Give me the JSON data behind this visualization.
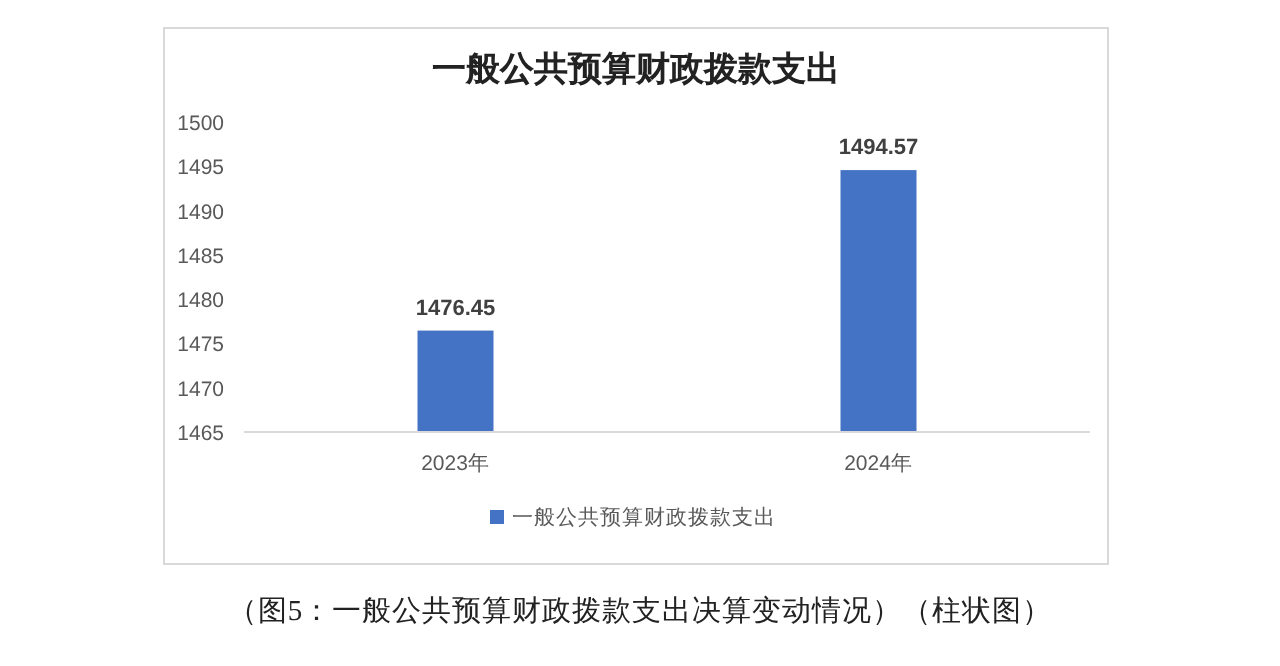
{
  "chart_data": {
    "type": "bar",
    "title": "一般公共预算财政拨款支出",
    "categories": [
      "2023年",
      "2024年"
    ],
    "series": [
      {
        "name": "一般公共预算财政拨款支出",
        "color": "#4472c4",
        "values": [
          1476.45,
          1494.57
        ]
      }
    ],
    "ylim": [
      1465,
      1500
    ],
    "yticks": [
      1465,
      1470,
      1475,
      1480,
      1485,
      1490,
      1495,
      1500
    ],
    "data_labels": true,
    "legend": "bottom",
    "annotations": [
      "（图5：一般公共预算财政拨款支出决算变动情况）（柱状图）"
    ]
  }
}
